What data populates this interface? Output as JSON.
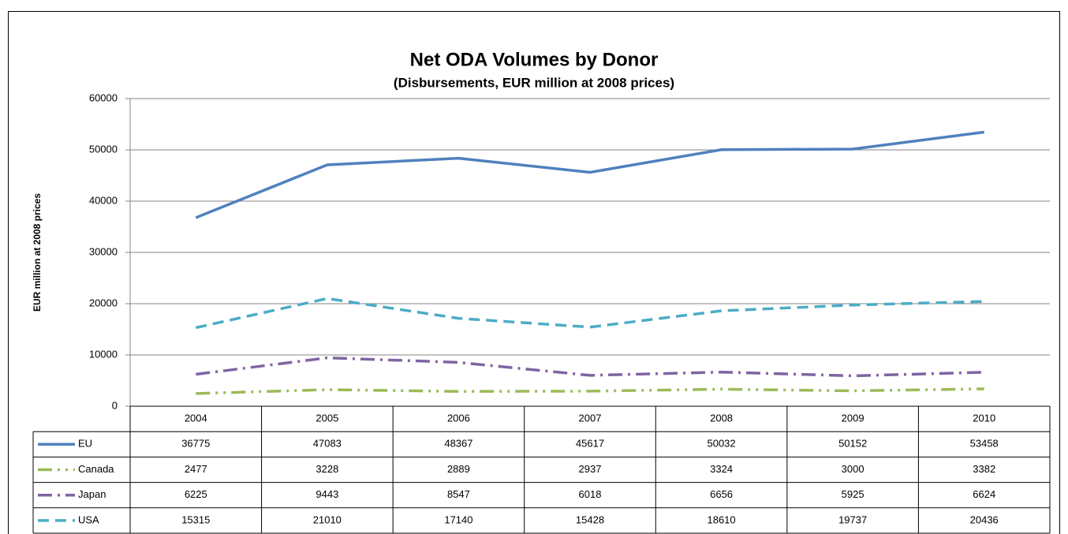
{
  "chart_data": {
    "type": "line",
    "title": "Net ODA Volumes by Donor",
    "subtitle": "(Disbursements, EUR million at 2008 prices)",
    "y_label": "EUR million at 2008  prices",
    "categories": [
      "2004",
      "2005",
      "2006",
      "2007",
      "2008",
      "2009",
      "2010"
    ],
    "series": [
      {
        "name": "EU",
        "color": "#4f81bd",
        "style": "solid",
        "values": [
          36775,
          47083,
          48367,
          45617,
          50032,
          50152,
          53458
        ]
      },
      {
        "name": "Canada",
        "color": "#9bbb59",
        "style": "long-dash-dot-dot",
        "values": [
          2477,
          3228,
          2889,
          2937,
          3324,
          3000,
          3382
        ]
      },
      {
        "name": "Japan",
        "color": "#8064a2",
        "style": "long-dash-dot",
        "values": [
          6225,
          9443,
          8547,
          6018,
          6656,
          5925,
          6624
        ]
      },
      {
        "name": "USA",
        "color": "#4bacc6",
        "style": "dash",
        "values": [
          15315,
          21010,
          17140,
          15428,
          18610,
          19737,
          20436
        ]
      }
    ],
    "ylim": [
      0,
      60000
    ],
    "yticks": [
      0,
      10000,
      20000,
      30000,
      40000,
      50000,
      60000
    ],
    "grid": true,
    "data_table": true
  }
}
